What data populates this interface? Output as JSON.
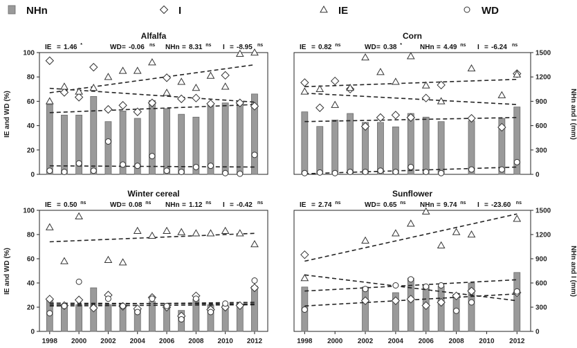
{
  "legend": [
    {
      "key": "NHn",
      "label": "NHn",
      "marker": "bar"
    },
    {
      "key": "I",
      "label": "I",
      "marker": "diamond"
    },
    {
      "key": "IE",
      "label": "IE",
      "marker": "triangle"
    },
    {
      "key": "WD",
      "label": "WD",
      "marker": "circle"
    }
  ],
  "colors": {
    "bar_fill": "#9a9a9a",
    "bar_stroke": "#6a6a6a",
    "marker_stroke": "#333333",
    "trend": "#222222"
  },
  "axis_labels": {
    "left": "IE and WD (%)",
    "right": "NHn and I (mm)"
  },
  "chart_data": [
    {
      "type": "bar+scatter",
      "title": "Alfalfa",
      "stats": [
        {
          "name": "IE",
          "value": "1.46",
          "sig": "*"
        },
        {
          "name": "WD",
          "value": "-0.06",
          "sig": "ns"
        },
        {
          "name": "NHn",
          "value": "8.31",
          "sig": "ns"
        },
        {
          "name": "I",
          "value": "-8.95",
          "sig": "ns"
        }
      ],
      "ylim_left": [
        0,
        100
      ],
      "ylim_right": [
        0,
        1500
      ],
      "left_ticks": [
        0,
        20,
        40,
        60,
        80,
        100
      ],
      "right_ticks": [],
      "x_ticks": [],
      "NHn": [
        [
          1998,
          860
        ],
        [
          1999,
          730
        ],
        [
          2000,
          730
        ],
        [
          2001,
          960
        ],
        [
          2002,
          650
        ],
        [
          2003,
          780
        ],
        [
          2004,
          690
        ],
        [
          2005,
          910
        ],
        [
          2006,
          810
        ],
        [
          2007,
          740
        ],
        [
          2008,
          705
        ],
        [
          2009,
          860
        ],
        [
          2010,
          880
        ],
        [
          2011,
          890
        ],
        [
          2012,
          990
        ]
      ],
      "I": [
        [
          1998,
          1400
        ],
        [
          1999,
          1010
        ],
        [
          2000,
          950
        ],
        [
          2001,
          1320
        ],
        [
          2002,
          800
        ],
        [
          2003,
          850
        ],
        [
          2004,
          770
        ],
        [
          2005,
          880
        ],
        [
          2006,
          1190
        ],
        [
          2007,
          930
        ],
        [
          2008,
          940
        ],
        [
          2009,
          870
        ],
        [
          2010,
          1220
        ],
        [
          2011,
          880
        ],
        [
          2012,
          840
        ]
      ],
      "IE": [
        [
          1998,
          60
        ],
        [
          1999,
          72
        ],
        [
          2000,
          68
        ],
        [
          2001,
          71
        ],
        [
          2002,
          80
        ],
        [
          2003,
          85
        ],
        [
          2004,
          85
        ],
        [
          2005,
          92
        ],
        [
          2006,
          67
        ],
        [
          2007,
          76
        ],
        [
          2008,
          71
        ],
        [
          2009,
          81
        ],
        [
          2010,
          72
        ],
        [
          2011,
          99
        ],
        [
          2012,
          100
        ]
      ],
      "WD": [
        [
          1998,
          3
        ],
        [
          1999,
          2
        ],
        [
          2000,
          9
        ],
        [
          2001,
          3
        ],
        [
          2002,
          27
        ],
        [
          2003,
          8
        ],
        [
          2004,
          7
        ],
        [
          2005,
          15
        ],
        [
          2006,
          3
        ],
        [
          2007,
          2
        ],
        [
          2008,
          6
        ],
        [
          2009,
          7
        ],
        [
          2010,
          1
        ],
        [
          2011,
          0.5
        ],
        [
          2012,
          16
        ]
      ],
      "trends": [
        {
          "of": "IE",
          "axis": "left",
          "from": [
            1998,
            67
          ],
          "to": [
            2012,
            90
          ]
        },
        {
          "of": "I",
          "axis": "right",
          "from": [
            1998,
            1060
          ],
          "to": [
            2012,
            890
          ]
        },
        {
          "of": "NHn",
          "axis": "right",
          "from": [
            1998,
            760
          ],
          "to": [
            2012,
            860
          ]
        },
        {
          "of": "WD",
          "axis": "left",
          "from": [
            1998,
            7
          ],
          "to": [
            2012,
            6
          ]
        }
      ]
    },
    {
      "type": "bar+scatter",
      "title": "Corn",
      "stats": [
        {
          "name": "IE",
          "value": "0.82",
          "sig": "ns"
        },
        {
          "name": "WD",
          "value": "0.38",
          "sig": "*"
        },
        {
          "name": "NHn",
          "value": "4.49",
          "sig": "ns"
        },
        {
          "name": "I",
          "value": "-6.24",
          "sig": "ns"
        }
      ],
      "ylim_left": [
        0,
        100
      ],
      "ylim_right": [
        0,
        1500
      ],
      "left_ticks": [],
      "right_ticks": [
        0,
        300,
        600,
        900,
        1200,
        1500
      ],
      "x_ticks": [],
      "NHn": [
        [
          1998,
          770
        ],
        [
          1999,
          590
        ],
        [
          2000,
          670
        ],
        [
          2001,
          750
        ],
        [
          2002,
          640
        ],
        [
          2003,
          640
        ],
        [
          2004,
          585
        ],
        [
          2005,
          750
        ],
        [
          2006,
          705
        ],
        [
          2007,
          650
        ],
        [
          2009,
          660
        ],
        [
          2011,
          690
        ],
        [
          2012,
          830
        ]
      ],
      "I": [
        [
          1998,
          1130
        ],
        [
          1999,
          820
        ],
        [
          2000,
          1150
        ],
        [
          2001,
          1050
        ],
        [
          2002,
          590
        ],
        [
          2003,
          700
        ],
        [
          2004,
          730
        ],
        [
          2005,
          700
        ],
        [
          2006,
          940
        ],
        [
          2007,
          1100
        ],
        [
          2009,
          690
        ],
        [
          2011,
          580
        ],
        [
          2012,
          1240
        ]
      ],
      "IE": [
        [
          1998,
          68
        ],
        [
          1999,
          70
        ],
        [
          2000,
          57
        ],
        [
          2001,
          71
        ],
        [
          2002,
          96
        ],
        [
          2003,
          84
        ],
        [
          2004,
          76
        ],
        [
          2005,
          97
        ],
        [
          2006,
          73
        ],
        [
          2007,
          60
        ],
        [
          2009,
          87
        ],
        [
          2011,
          65
        ],
        [
          2012,
          82
        ]
      ],
      "WD": [
        [
          1998,
          1
        ],
        [
          1999,
          1.5
        ],
        [
          2000,
          1
        ],
        [
          2001,
          2
        ],
        [
          2002,
          2
        ],
        [
          2003,
          3
        ],
        [
          2004,
          2
        ],
        [
          2005,
          6
        ],
        [
          2006,
          2
        ],
        [
          2007,
          1
        ],
        [
          2009,
          4
        ],
        [
          2011,
          4
        ],
        [
          2012,
          10
        ]
      ],
      "trends": [
        {
          "of": "IE",
          "axis": "left",
          "from": [
            1998,
            72
          ],
          "to": [
            2012,
            78
          ]
        },
        {
          "of": "I",
          "axis": "right",
          "from": [
            1998,
            1000
          ],
          "to": [
            2012,
            860
          ]
        },
        {
          "of": "NHn",
          "axis": "right",
          "from": [
            1998,
            650
          ],
          "to": [
            2012,
            700
          ]
        },
        {
          "of": "WD",
          "axis": "left",
          "from": [
            1998,
            0.5
          ],
          "to": [
            2012,
            6
          ]
        }
      ]
    },
    {
      "type": "bar+scatter",
      "title": "Winter cereal",
      "stats": [
        {
          "name": "IE",
          "value": "0.50",
          "sig": "ns"
        },
        {
          "name": "WD",
          "value": "0.08",
          "sig": "ns"
        },
        {
          "name": "NHn",
          "value": "1.12",
          "sig": "ns"
        },
        {
          "name": "I",
          "value": "-0.42",
          "sig": "ns"
        }
      ],
      "ylim_left": [
        0,
        100
      ],
      "ylim_right": [
        0,
        1500
      ],
      "left_ticks": [
        0,
        20,
        40,
        60,
        80,
        100
      ],
      "right_ticks": [],
      "x_ticks": [
        1998,
        2000,
        2002,
        2004,
        2006,
        2008,
        2010,
        2012
      ],
      "NHn": [
        [
          1998,
          400
        ],
        [
          1999,
          330
        ],
        [
          2000,
          330
        ],
        [
          2001,
          540
        ],
        [
          2002,
          330
        ],
        [
          2003,
          330
        ],
        [
          2004,
          280
        ],
        [
          2005,
          370
        ],
        [
          2006,
          310
        ],
        [
          2007,
          260
        ],
        [
          2008,
          400
        ],
        [
          2009,
          330
        ],
        [
          2010,
          320
        ],
        [
          2011,
          340
        ],
        [
          2012,
          560
        ]
      ],
      "I": [
        [
          1998,
          400
        ],
        [
          1999,
          320
        ],
        [
          2000,
          390
        ],
        [
          2001,
          290
        ],
        [
          2002,
          450
        ],
        [
          2003,
          310
        ],
        [
          2004,
          280
        ],
        [
          2005,
          420
        ],
        [
          2006,
          300
        ],
        [
          2007,
          190
        ],
        [
          2008,
          440
        ],
        [
          2009,
          270
        ],
        [
          2010,
          300
        ],
        [
          2011,
          320
        ],
        [
          2012,
          540
        ]
      ],
      "IE": [
        [
          1998,
          86
        ],
        [
          1999,
          58
        ],
        [
          2000,
          95
        ],
        [
          2002,
          59
        ],
        [
          2003,
          57
        ],
        [
          2004,
          83
        ],
        [
          2005,
          79
        ],
        [
          2006,
          83
        ],
        [
          2007,
          82
        ],
        [
          2008,
          81
        ],
        [
          2009,
          81
        ],
        [
          2010,
          83
        ],
        [
          2011,
          81
        ],
        [
          2012,
          72
        ]
      ],
      "WD": [
        [
          1998,
          15
        ],
        [
          1999,
          21
        ],
        [
          2000,
          41
        ],
        [
          2002,
          27
        ],
        [
          2003,
          21
        ],
        [
          2004,
          16
        ],
        [
          2005,
          27
        ],
        [
          2006,
          21
        ],
        [
          2007,
          10
        ],
        [
          2008,
          27
        ],
        [
          2009,
          16
        ],
        [
          2010,
          23
        ],
        [
          2012,
          42
        ]
      ],
      "trends": [
        {
          "of": "IE",
          "axis": "left",
          "from": [
            1998,
            74
          ],
          "to": [
            2012,
            81
          ]
        },
        {
          "of": "I",
          "axis": "right",
          "from": [
            1998,
            350
          ],
          "to": [
            2012,
            340
          ]
        },
        {
          "of": "NHn",
          "axis": "right",
          "from": [
            1998,
            330
          ],
          "to": [
            2012,
            360
          ]
        },
        {
          "of": "WD",
          "axis": "left",
          "from": [
            1998,
            21
          ],
          "to": [
            2012,
            22
          ]
        }
      ]
    },
    {
      "type": "bar+scatter",
      "title": "Sunflower",
      "stats": [
        {
          "name": "IE",
          "value": "2.74",
          "sig": "ns"
        },
        {
          "name": "WD",
          "value": "0.65",
          "sig": "ns"
        },
        {
          "name": "NHn",
          "value": "9.74",
          "sig": "ns"
        },
        {
          "name": "I",
          "value": "-23.60",
          "sig": "ns"
        }
      ],
      "ylim_left": [
        0,
        100
      ],
      "ylim_right": [
        0,
        1500
      ],
      "left_ticks": [],
      "right_ticks": [
        0,
        300,
        600,
        900,
        1200,
        1500
      ],
      "x_ticks": [
        1998,
        2000,
        2002,
        2004,
        2006,
        2008,
        2010,
        2012
      ],
      "NHn": [
        [
          1998,
          550
        ],
        [
          2002,
          550
        ],
        [
          2004,
          480
        ],
        [
          2005,
          660
        ],
        [
          2006,
          570
        ],
        [
          2007,
          560
        ],
        [
          2008,
          460
        ],
        [
          2009,
          600
        ],
        [
          2012,
          730
        ]
      ],
      "I": [
        [
          1998,
          950
        ],
        [
          2002,
          380
        ],
        [
          2004,
          380
        ],
        [
          2005,
          400
        ],
        [
          2006,
          320
        ],
        [
          2007,
          360
        ],
        [
          2008,
          440
        ],
        [
          2009,
          500
        ],
        [
          2012,
          480
        ]
      ],
      "IE": [
        [
          1998,
          44
        ],
        [
          2002,
          75
        ],
        [
          2004,
          81
        ],
        [
          2005,
          89
        ],
        [
          2006,
          99
        ],
        [
          2007,
          71
        ],
        [
          2008,
          82
        ],
        [
          2009,
          80
        ],
        [
          2012,
          93
        ]
      ],
      "WD": [
        [
          1998,
          18
        ],
        [
          2002,
          35
        ],
        [
          2004,
          38
        ],
        [
          2005,
          43
        ],
        [
          2006,
          37
        ],
        [
          2007,
          38
        ],
        [
          2008,
          17
        ],
        [
          2009,
          24
        ],
        [
          2012,
          33
        ]
      ],
      "trends": [
        {
          "of": "IE",
          "axis": "left",
          "from": [
            1998,
            58
          ],
          "to": [
            2012,
            97
          ]
        },
        {
          "of": "I",
          "axis": "right",
          "from": [
            1998,
            700
          ],
          "to": [
            2012,
            380
          ]
        },
        {
          "of": "NHn",
          "axis": "right",
          "from": [
            1998,
            500
          ],
          "to": [
            2012,
            640
          ]
        },
        {
          "of": "WD",
          "axis": "left",
          "from": [
            1998,
            21
          ],
          "to": [
            2012,
            31
          ]
        }
      ]
    }
  ]
}
